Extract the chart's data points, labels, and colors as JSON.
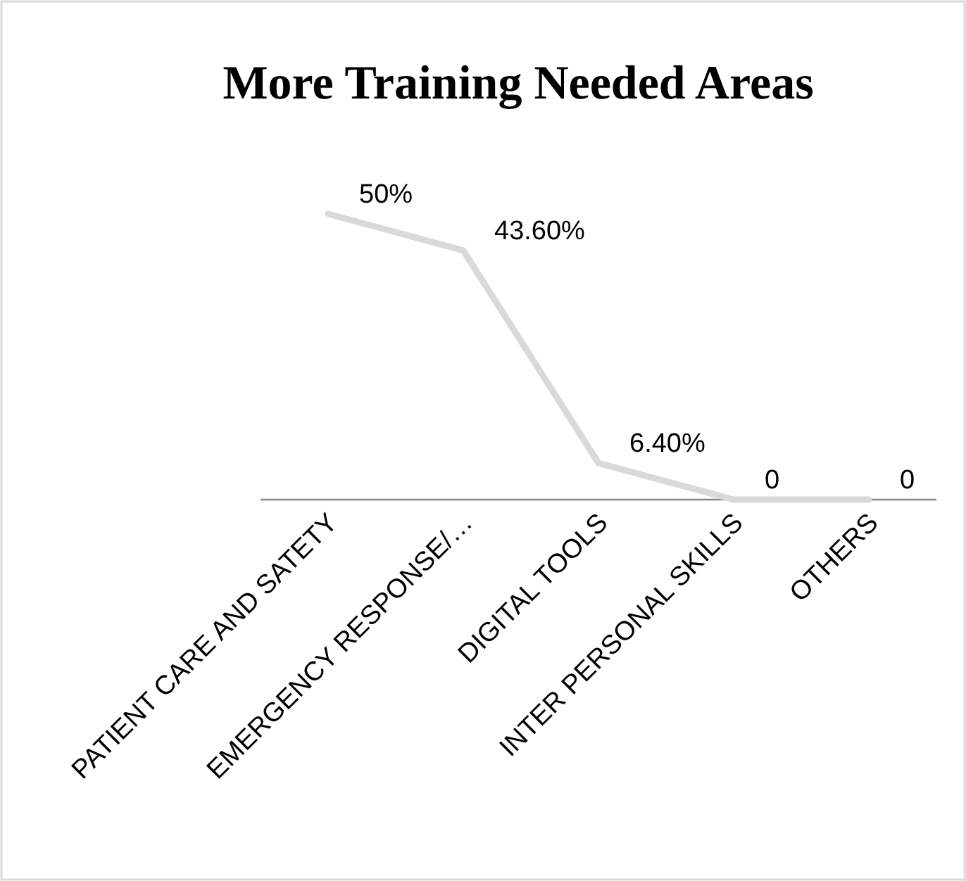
{
  "chart_data": {
    "type": "line",
    "title": "More Training Needed Areas",
    "categories": [
      "PATIENT CARE AND SATETY",
      "EMERGENCY RESPONSE/…",
      "DIGITAL TOOLS",
      "INTER PERSONAL SKILLS",
      "OTHERS"
    ],
    "series": [
      {
        "color": "#d9d9d9",
        "values": [
          50,
          43.6,
          6.4,
          0,
          0
        ],
        "value_labels": [
          "50%",
          "43.60%",
          "6.40%",
          "0",
          "0"
        ]
      }
    ],
    "marker": "none",
    "line_style": "solid"
  }
}
